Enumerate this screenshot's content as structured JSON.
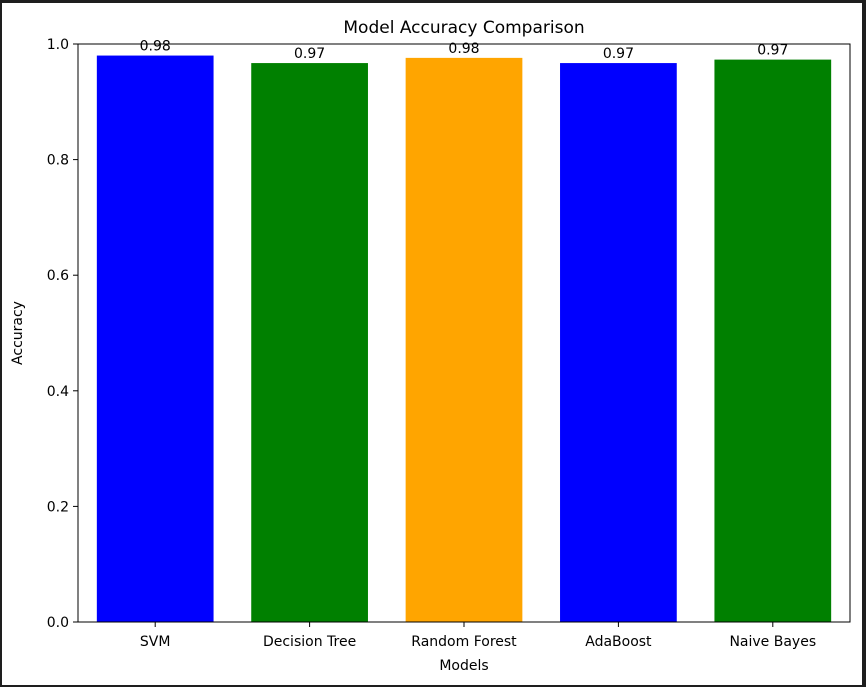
{
  "chart_data": {
    "type": "bar",
    "title": "Model Accuracy Comparison",
    "xlabel": "Models",
    "ylabel": "Accuracy",
    "categories": [
      "SVM",
      "Decision Tree",
      "Random Forest",
      "AdaBoost",
      "Naive Bayes"
    ],
    "values": [
      0.98,
      0.967,
      0.976,
      0.967,
      0.973
    ],
    "data_labels": [
      "0.98",
      "0.97",
      "0.98",
      "0.97",
      "0.97"
    ],
    "colors": [
      "#0000ff",
      "#008000",
      "#ffa500",
      "#0000ff",
      "#008000"
    ],
    "ylim": [
      0,
      1.0
    ],
    "yticks": [
      "0.0",
      "0.2",
      "0.4",
      "0.6",
      "0.8",
      "1.0"
    ],
    "grid": false,
    "legend": false
  }
}
